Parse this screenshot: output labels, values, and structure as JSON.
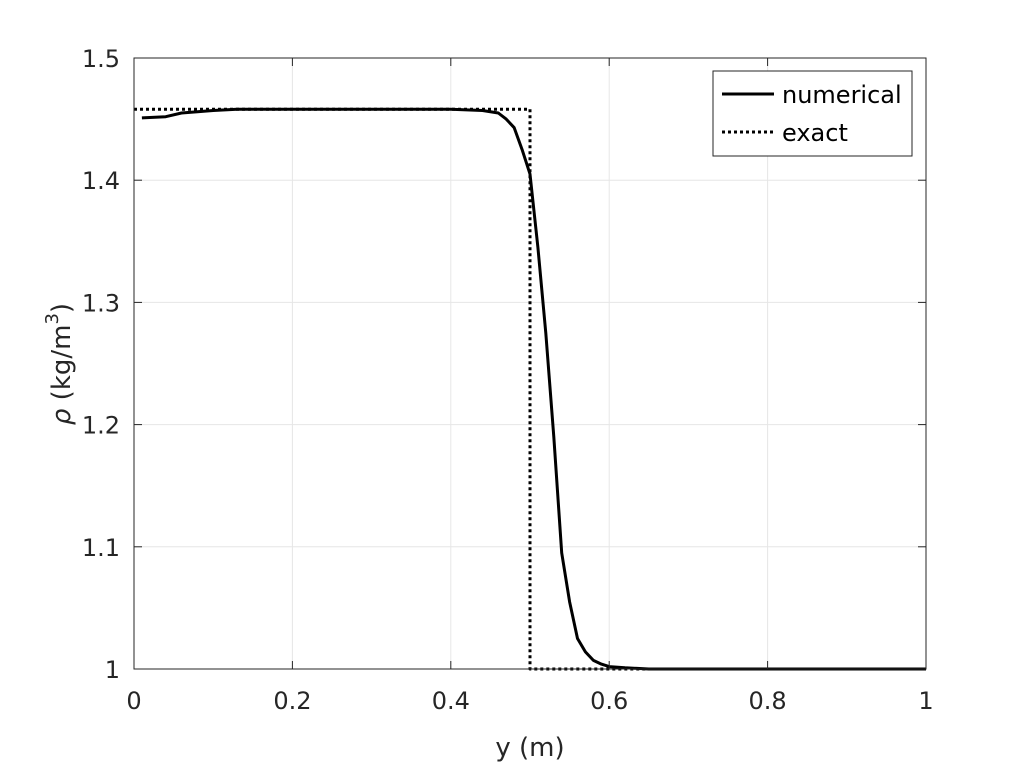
{
  "chart_data": {
    "type": "line",
    "xlabel": "y (m)",
    "ylabel": {
      "symbol": "ρ",
      "unit_open": " (kg/m",
      "superscript": "3",
      "unit_close": ")"
    },
    "xlim": [
      0,
      1
    ],
    "ylim": [
      1,
      1.5
    ],
    "x_ticks": [
      0,
      0.2,
      0.4,
      0.6,
      0.8,
      1
    ],
    "x_tick_labels": [
      "0",
      "0.2",
      "0.4",
      "0.6",
      "0.8",
      "1"
    ],
    "y_ticks": [
      1,
      1.1,
      1.2,
      1.3,
      1.4,
      1.5
    ],
    "y_tick_labels": [
      "1",
      "1.1",
      "1.2",
      "1.3",
      "1.4",
      "1.5"
    ],
    "grid": true,
    "legend_position": "top-right",
    "series": [
      {
        "name": "numerical",
        "style": "solid",
        "color": "#000000",
        "x": [
          0.01,
          0.04,
          0.06,
          0.08,
          0.1,
          0.13,
          0.2,
          0.3,
          0.4,
          0.44,
          0.46,
          0.47,
          0.48,
          0.49,
          0.5,
          0.51,
          0.52,
          0.53,
          0.54,
          0.55,
          0.56,
          0.57,
          0.58,
          0.59,
          0.6,
          0.62,
          0.65,
          0.7,
          0.8,
          0.9,
          1.0
        ],
        "y": [
          1.451,
          1.452,
          1.455,
          1.456,
          1.457,
          1.458,
          1.458,
          1.458,
          1.458,
          1.457,
          1.455,
          1.45,
          1.443,
          1.425,
          1.405,
          1.345,
          1.275,
          1.19,
          1.095,
          1.055,
          1.025,
          1.014,
          1.007,
          1.004,
          1.002,
          1.001,
          1.0,
          1.0,
          1.0,
          1.0,
          1.0
        ]
      },
      {
        "name": "exact",
        "style": "dotted",
        "color": "#000000",
        "x": [
          0,
          0.5,
          0.5,
          1.0
        ],
        "y": [
          1.458,
          1.458,
          1.0,
          1.0
        ]
      }
    ]
  }
}
